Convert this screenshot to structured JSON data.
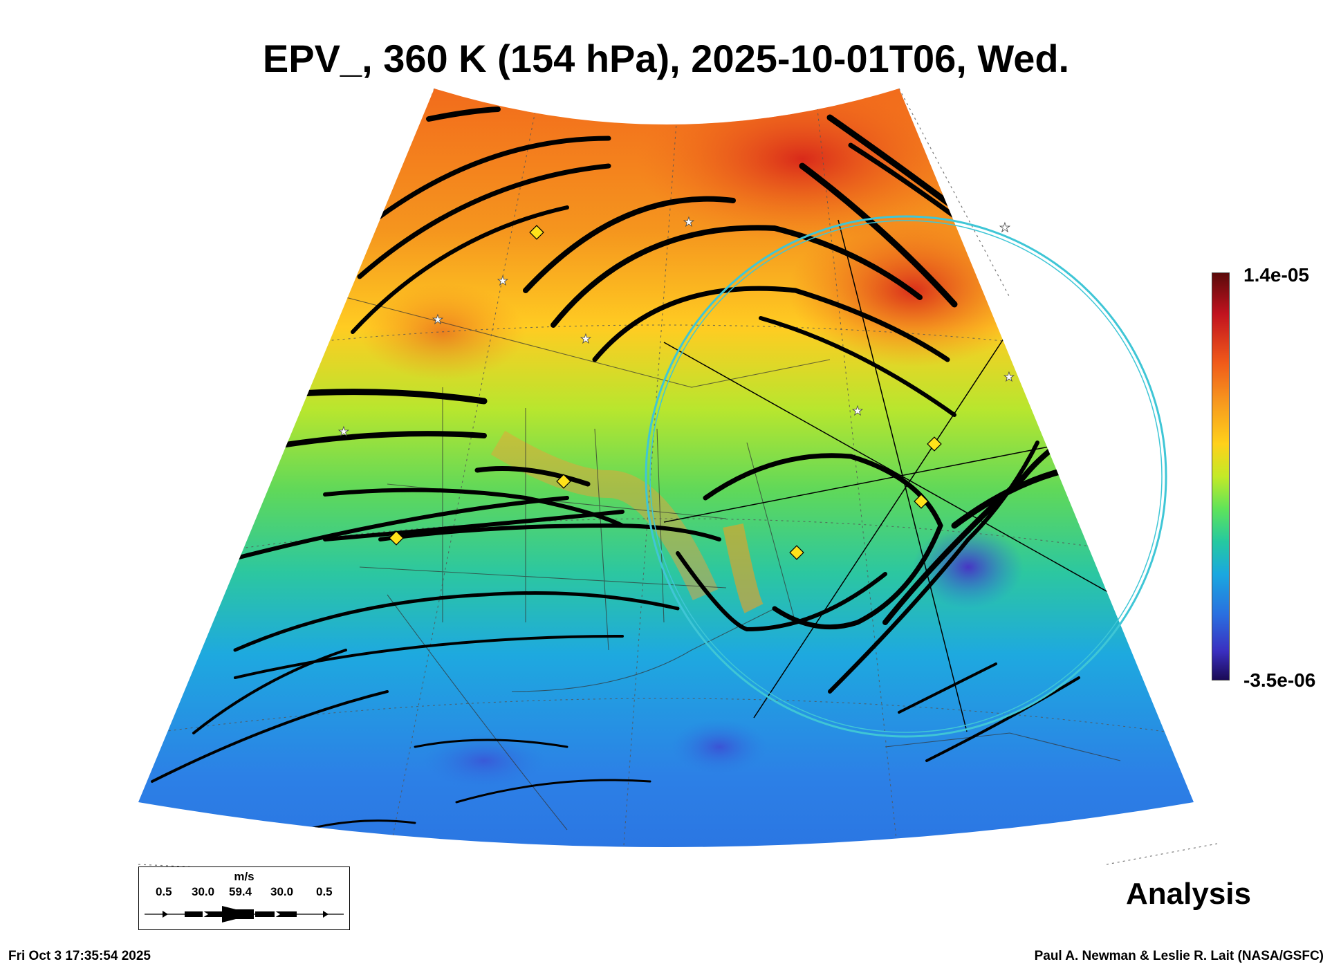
{
  "title": "EPV_, 360 K (154 hPa), 2025-10-01T06, Wed.",
  "colorbar": {
    "max_label": "1.4e-05",
    "min_label": "-3.5e-06",
    "colors": [
      "#5a0a0a",
      "#c1121f",
      "#f05a1a",
      "#f79a1e",
      "#ffd11a",
      "#c3ea27",
      "#5fe35a",
      "#25c9a0",
      "#1aa8e0",
      "#2a6fe0",
      "#3a2fc0",
      "#1a0a55"
    ]
  },
  "wind_legend": {
    "units": "m/s",
    "values": [
      "0.5",
      "30.0",
      "59.4",
      "30.0",
      "0.5"
    ]
  },
  "label_analysis": "Analysis",
  "footer": {
    "timestamp": "Fri Oct  3 17:35:54 2025",
    "credit": "Paul A. Newman & Leslie R. Lait (NASA/GSFC)"
  },
  "map_markers": {
    "star_color": "#ffffff",
    "diamond_color": "#ffe21a",
    "circle_color": "#3fc6d6"
  }
}
